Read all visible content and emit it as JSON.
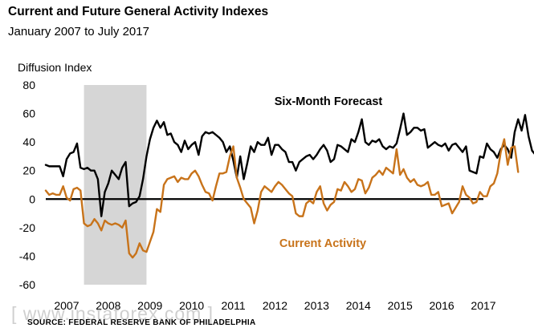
{
  "header": {
    "title": "Current and Future General Activity Indexes",
    "subtitle": "January 2007 to July 2017"
  },
  "source_note": "SOURCE: FEDERAL RESERVE BANK OF PHILADELPHIA",
  "watermark": "[ www.instaforex.com ]",
  "chart_data": {
    "type": "line",
    "ylabel": "Diffusion Index",
    "ylim": [
      -60,
      80
    ],
    "y_ticks": [
      80,
      60,
      40,
      20,
      0,
      -20,
      -40,
      -60
    ],
    "x_range": [
      "2007-01",
      "2017-07"
    ],
    "x_tick_labels": [
      "2007",
      "2008",
      "2009",
      "2010",
      "2011",
      "2012",
      "2013",
      "2014",
      "2015",
      "2016",
      "2017"
    ],
    "recession": {
      "start": "2007-12",
      "end": "2009-06",
      "color": "#d6d6d6"
    },
    "zero_line": true,
    "annotations": [
      {
        "text": "Six-Month Forecast",
        "series": "forecast",
        "color": "#000000"
      },
      {
        "text": "Current Activity",
        "series": "current",
        "color": "#c8731a"
      }
    ],
    "series": [
      {
        "id": "forecast",
        "color": "#000000",
        "start": "2007-01",
        "values": [
          24,
          23,
          23,
          23,
          23,
          16,
          28,
          32,
          33,
          39,
          22,
          21,
          22,
          20,
          20,
          14,
          -12,
          5,
          11,
          20,
          17,
          14,
          22,
          26,
          -5,
          -3,
          -2,
          2,
          14,
          30,
          42,
          50,
          55,
          50,
          54,
          45,
          46,
          40,
          38,
          33,
          41,
          35,
          38,
          40,
          31,
          44,
          47,
          46,
          47,
          45,
          43,
          40,
          33,
          37,
          27,
          15,
          30,
          14,
          25,
          37,
          33,
          40,
          38,
          38,
          43,
          31,
          38,
          38,
          35,
          33,
          26,
          26,
          20,
          26,
          28,
          30,
          31,
          28,
          31,
          35,
          38,
          34,
          26,
          28,
          38,
          37,
          35,
          33,
          42,
          40,
          47,
          56,
          40,
          38,
          41,
          40,
          42,
          37,
          35,
          37,
          36,
          39,
          49,
          60,
          45,
          47,
          50,
          50,
          48,
          49,
          36,
          38,
          40,
          38,
          37,
          39,
          34,
          38,
          39,
          36,
          33,
          37,
          20,
          19,
          18,
          30,
          29,
          39,
          35,
          33,
          29,
          35,
          38,
          35,
          29,
          47,
          56,
          48,
          59,
          44,
          34,
          31,
          37
        ]
      },
      {
        "id": "current",
        "color": "#c8731a",
        "start": "2007-01",
        "values": [
          6,
          3,
          4,
          3,
          3,
          9,
          1,
          -1,
          7,
          8,
          6,
          -17,
          -19,
          -18,
          -14,
          -17,
          -22,
          -15,
          -17,
          -18,
          -17,
          -18,
          -20,
          -15,
          -38,
          -41,
          -38,
          -31,
          -36,
          -37,
          -30,
          -23,
          -7,
          -9,
          10,
          14,
          15,
          16,
          12,
          15,
          14,
          14,
          18,
          20,
          16,
          10,
          5,
          4,
          -1,
          9,
          18,
          18,
          19,
          30,
          37,
          15,
          8,
          0,
          -3,
          -6,
          -17,
          -8,
          5,
          9,
          7,
          5,
          9,
          12,
          10,
          7,
          4,
          2,
          -10,
          -12,
          -12,
          -3,
          -1,
          -3,
          5,
          9,
          -3,
          -8,
          -4,
          -2,
          7,
          6,
          12,
          9,
          5,
          7,
          14,
          13,
          4,
          8,
          15,
          17,
          20,
          17,
          22,
          20,
          18,
          35,
          17,
          21,
          15,
          12,
          14,
          10,
          9,
          10,
          12,
          3,
          3,
          5,
          -5,
          -4,
          -3,
          -10,
          -6,
          -2,
          9,
          3,
          1,
          -3,
          -2,
          5,
          2,
          2,
          9,
          11,
          18,
          33,
          42,
          24,
          36,
          37,
          19
        ]
      }
    ]
  }
}
